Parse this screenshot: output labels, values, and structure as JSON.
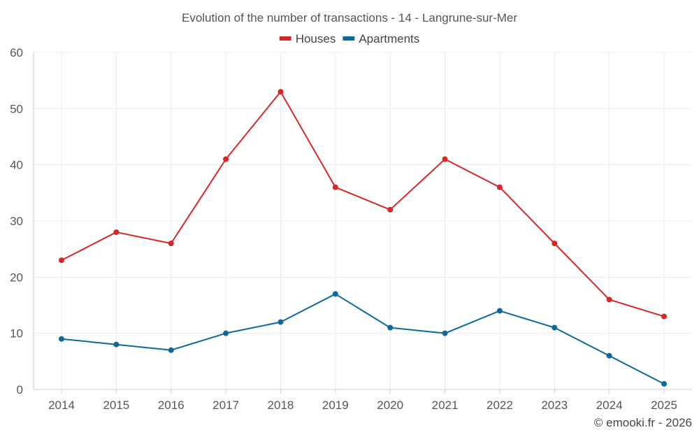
{
  "chart_data": {
    "type": "line",
    "title": "Evolution of the number of transactions - 14 - Langrune-sur-Mer",
    "xlabel": "",
    "ylabel": "",
    "categories": [
      "2014",
      "2015",
      "2016",
      "2017",
      "2018",
      "2019",
      "2020",
      "2021",
      "2022",
      "2023",
      "2024",
      "2025"
    ],
    "ylim": [
      0,
      60
    ],
    "yticks": [
      0,
      10,
      20,
      30,
      40,
      50,
      60
    ],
    "grid": true,
    "legend_position": "top-center",
    "series": [
      {
        "name": "Houses",
        "color": "#d62728",
        "values": [
          23,
          28,
          26,
          41,
          53,
          36,
          32,
          41,
          36,
          26,
          16,
          13
        ]
      },
      {
        "name": "Apartments",
        "color": "#0a6a9e",
        "values": [
          9,
          8,
          7,
          10,
          12,
          17,
          11,
          10,
          14,
          11,
          6,
          1
        ]
      }
    ]
  },
  "credit": "© emooki.fr - 2026"
}
